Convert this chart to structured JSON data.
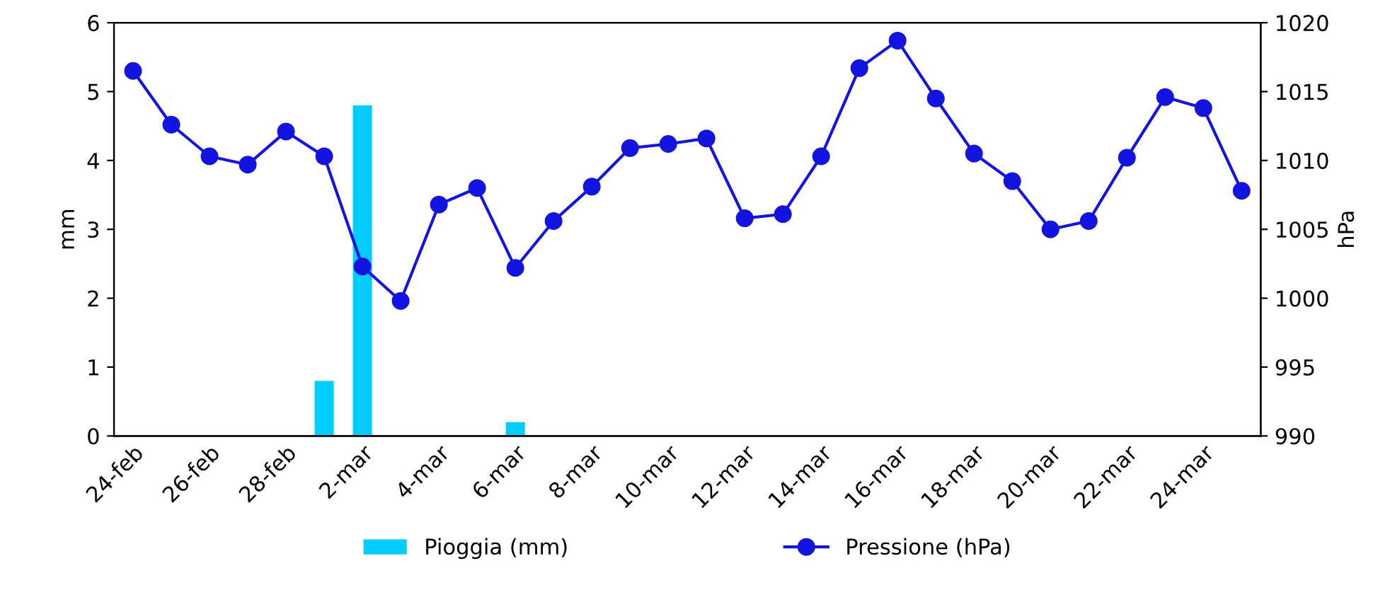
{
  "chart_data": {
    "type": "bar",
    "categories": [
      "24-feb",
      null,
      "26-feb",
      null,
      "28-feb",
      null,
      "2-mar",
      null,
      "4-mar",
      null,
      "6-mar",
      null,
      "8-mar",
      null,
      "10-mar",
      null,
      "12-mar",
      null,
      "14-mar",
      null,
      "16-mar",
      null,
      "18-mar",
      null,
      "20-mar",
      null,
      "22-mar",
      null,
      "24-mar",
      null
    ],
    "series": [
      {
        "name": "Pioggia (mm)",
        "color": "#00ccff",
        "values": [
          0,
          0,
          0,
          0,
          0,
          0.8,
          4.8,
          0,
          0,
          0,
          0.2,
          0,
          0,
          0,
          0,
          0,
          0,
          0,
          0,
          0,
          0,
          0,
          0,
          0,
          0,
          0,
          0,
          0,
          0,
          0
        ]
      },
      {
        "name": "Pressione (hPa)",
        "type": "line",
        "axis": "y2",
        "color": "#1414e0",
        "marker": "circle",
        "values": [
          1016.5,
          1012.6,
          1010.3,
          1009.7,
          1012.1,
          1010.3,
          1002.3,
          999.8,
          1006.8,
          1008.0,
          1002.2,
          1005.6,
          1008.1,
          1010.9,
          1011.2,
          1011.6,
          1005.8,
          1006.1,
          1010.3,
          1016.7,
          1018.7,
          1014.5,
          1010.5,
          1008.5,
          1005.0,
          1005.6,
          1010.2,
          1014.6,
          1013.8,
          1007.8
        ]
      }
    ],
    "ylabel": "mm",
    "y2label": "hPa",
    "ylim": [
      0,
      6
    ],
    "yticks": [
      0,
      1,
      2,
      3,
      4,
      5,
      6
    ],
    "y2lim": [
      990,
      1020
    ],
    "y2ticks": [
      990,
      995,
      1000,
      1005,
      1010,
      1015,
      1020
    ],
    "grid": false,
    "legend": "bottom"
  }
}
